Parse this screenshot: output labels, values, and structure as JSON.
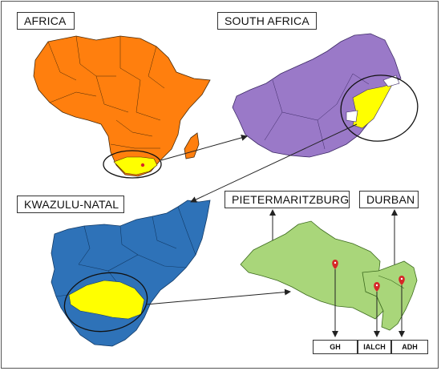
{
  "labels": {
    "africa": "AFRICA",
    "south_africa": "SOUTH AFRICA",
    "kwazulu_natal": "KWAZULU-NATAL",
    "pietermaritzburg": "PIETERMARITZBURG",
    "durban": "DURBAN"
  },
  "hospitals": {
    "gh": "GH",
    "ialch": "IALCH",
    "adh": "ADH"
  },
  "colors": {
    "africa": "#ff7f0e",
    "south_africa": "#9a79c8",
    "kwazulu_natal": "#2e72b8",
    "highlight": "#ffff00",
    "metro": "#a9d67a",
    "pin": "#d62728"
  }
}
